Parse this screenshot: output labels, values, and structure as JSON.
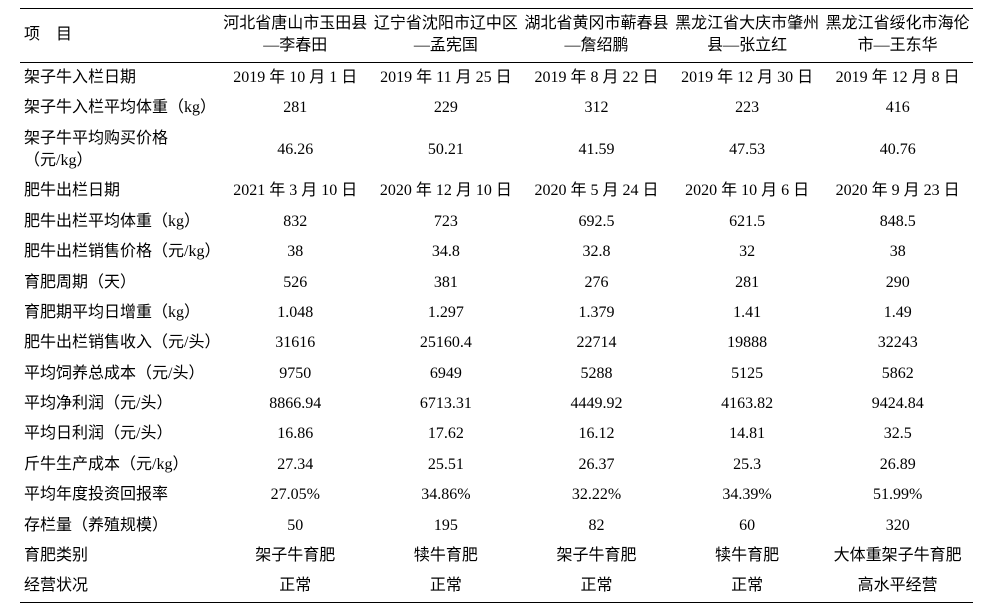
{
  "table": {
    "header_label": "项　目",
    "font_size_pt": 12,
    "background_color": "#ffffff",
    "text_color": "#000000",
    "border_color": "#000000",
    "columns": [
      "河北省唐山市玉田县—李春田",
      "辽宁省沈阳市辽中区—孟宪国",
      "湖北省黄冈市蕲春县—詹绍鹏",
      "黑龙江省大庆市肇州县—张立红",
      "黑龙江省绥化市海伦市—王东华"
    ],
    "rows": [
      {
        "label": "架子牛入栏日期",
        "values": [
          "2019 年 10 月 1 日",
          "2019 年 11 月 25 日",
          "2019 年 8 月 22 日",
          "2019 年 12 月 30 日",
          "2019 年 12 月 8 日"
        ]
      },
      {
        "label": "架子牛入栏平均体重（kg）",
        "values": [
          "281",
          "229",
          "312",
          "223",
          "416"
        ]
      },
      {
        "label": "架子牛平均购买价格（元/kg）",
        "values": [
          "46.26",
          "50.21",
          "41.59",
          "47.53",
          "40.76"
        ]
      },
      {
        "label": "肥牛出栏日期",
        "values": [
          "2021 年 3 月 10 日",
          "2020 年 12 月 10 日",
          "2020 年 5 月 24 日",
          "2020 年 10 月 6 日",
          "2020 年 9 月 23 日"
        ]
      },
      {
        "label": "肥牛出栏平均体重（kg）",
        "values": [
          "832",
          "723",
          "692.5",
          "621.5",
          "848.5"
        ]
      },
      {
        "label": "肥牛出栏销售价格（元/kg）",
        "values": [
          "38",
          "34.8",
          "32.8",
          "32",
          "38"
        ]
      },
      {
        "label": "育肥周期（天）",
        "values": [
          "526",
          "381",
          "276",
          "281",
          "290"
        ]
      },
      {
        "label": "育肥期平均日增重（kg）",
        "values": [
          "1.048",
          "1.297",
          "1.379",
          "1.41",
          "1.49"
        ]
      },
      {
        "label": "肥牛出栏销售收入（元/头）",
        "values": [
          "31616",
          "25160.4",
          "22714",
          "19888",
          "32243"
        ]
      },
      {
        "label": "平均饲养总成本（元/头）",
        "values": [
          "9750",
          "6949",
          "5288",
          "5125",
          "5862"
        ]
      },
      {
        "label": "平均净利润（元/头）",
        "values": [
          "8866.94",
          "6713.31",
          "4449.92",
          "4163.82",
          "9424.84"
        ]
      },
      {
        "label": "平均日利润（元/头）",
        "values": [
          "16.86",
          "17.62",
          "16.12",
          "14.81",
          "32.5"
        ]
      },
      {
        "label": "斤牛生产成本（元/kg）",
        "values": [
          "27.34",
          "25.51",
          "26.37",
          "25.3",
          "26.89"
        ]
      },
      {
        "label": "平均年度投资回报率",
        "values": [
          "27.05%",
          "34.86%",
          "32.22%",
          "34.39%",
          "51.99%"
        ]
      },
      {
        "label": "存栏量（养殖规模）",
        "values": [
          "50",
          "195",
          "82",
          "60",
          "320"
        ]
      },
      {
        "label": "育肥类别",
        "values": [
          "架子牛育肥",
          "犊牛育肥",
          "架子牛育肥",
          "犊牛育肥",
          "大体重架子牛育肥"
        ]
      },
      {
        "label": "经营状况",
        "values": [
          "正常",
          "正常",
          "正常",
          "正常",
          "高水平经营"
        ]
      }
    ]
  }
}
